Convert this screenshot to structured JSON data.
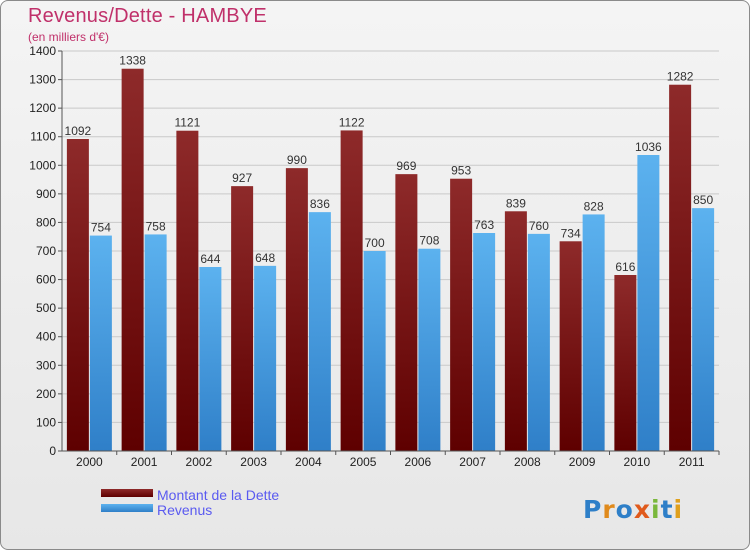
{
  "title": "Revenus/Dette - HAMBYE",
  "subtitle": "(en milliers d'€)",
  "logo": "Proxiti",
  "colors": {
    "debt": "#7a1515",
    "revenue": "#4ea5e8",
    "title": "#c0306a",
    "legend_text": "#5a5af0"
  },
  "chart_data": {
    "type": "bar",
    "title": "Revenus/Dette - HAMBYE",
    "subtitle": "(en milliers d'€)",
    "categories": [
      "2000",
      "2001",
      "2002",
      "2003",
      "2004",
      "2005",
      "2006",
      "2007",
      "2008",
      "2009",
      "2010",
      "2011"
    ],
    "series": [
      {
        "name": "Montant de la Dette",
        "values": [
          1092,
          1338,
          1121,
          927,
          990,
          1122,
          969,
          953,
          839,
          734,
          616,
          1282
        ]
      },
      {
        "name": "Revenus",
        "values": [
          754,
          758,
          644,
          648,
          836,
          700,
          708,
          763,
          760,
          828,
          1036,
          850
        ]
      }
    ],
    "ylim": [
      0,
      1400
    ],
    "yticks": [
      0,
      100,
      200,
      300,
      400,
      500,
      600,
      700,
      800,
      900,
      1000,
      1100,
      1200,
      1300,
      1400
    ],
    "grid": true,
    "legend": "bottom-left"
  }
}
